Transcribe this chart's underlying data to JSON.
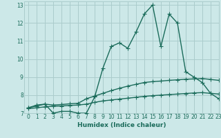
{
  "title": "",
  "xlabel": "Humidex (Indice chaleur)",
  "bg_color": "#cce8e8",
  "grid_color": "#aacccc",
  "line_color": "#1a6b5a",
  "xlim": [
    -0.5,
    23
  ],
  "ylim": [
    7,
    13.2
  ],
  "yticks": [
    7,
    8,
    9,
    10,
    11,
    12,
    13
  ],
  "xticks": [
    0,
    1,
    2,
    3,
    4,
    5,
    6,
    7,
    8,
    9,
    10,
    11,
    12,
    13,
    14,
    15,
    16,
    17,
    18,
    19,
    20,
    21,
    22,
    23
  ],
  "series1_x": [
    0,
    1,
    2,
    3,
    4,
    5,
    6,
    7,
    8,
    9,
    10,
    11,
    12,
    13,
    14,
    15,
    16,
    17,
    18,
    19,
    20,
    21,
    22,
    23
  ],
  "series1_y": [
    7.3,
    7.4,
    7.5,
    7.0,
    7.1,
    7.1,
    7.0,
    7.0,
    7.9,
    9.5,
    10.7,
    10.9,
    10.6,
    11.5,
    12.5,
    13.0,
    10.7,
    12.5,
    12.0,
    9.3,
    9.0,
    8.7,
    8.1,
    7.8
  ],
  "series2_x": [
    0,
    1,
    2,
    3,
    4,
    5,
    6,
    7,
    8,
    9,
    10,
    11,
    12,
    13,
    14,
    15,
    16,
    17,
    18,
    19,
    20,
    21,
    22,
    23
  ],
  "series2_y": [
    7.3,
    7.45,
    7.5,
    7.45,
    7.48,
    7.52,
    7.55,
    7.8,
    7.95,
    8.1,
    8.25,
    8.38,
    8.5,
    8.6,
    8.7,
    8.75,
    8.78,
    8.82,
    8.85,
    8.88,
    8.9,
    8.92,
    8.87,
    8.82
  ],
  "series3_x": [
    0,
    1,
    2,
    3,
    4,
    5,
    6,
    7,
    8,
    9,
    10,
    11,
    12,
    13,
    14,
    15,
    16,
    17,
    18,
    19,
    20,
    21,
    22,
    23
  ],
  "series3_y": [
    7.25,
    7.3,
    7.35,
    7.38,
    7.4,
    7.43,
    7.45,
    7.5,
    7.6,
    7.68,
    7.73,
    7.78,
    7.83,
    7.88,
    7.93,
    7.97,
    8.0,
    8.03,
    8.06,
    8.09,
    8.12,
    8.14,
    8.1,
    8.06
  ],
  "marker_size": 4,
  "line_width": 1.0
}
